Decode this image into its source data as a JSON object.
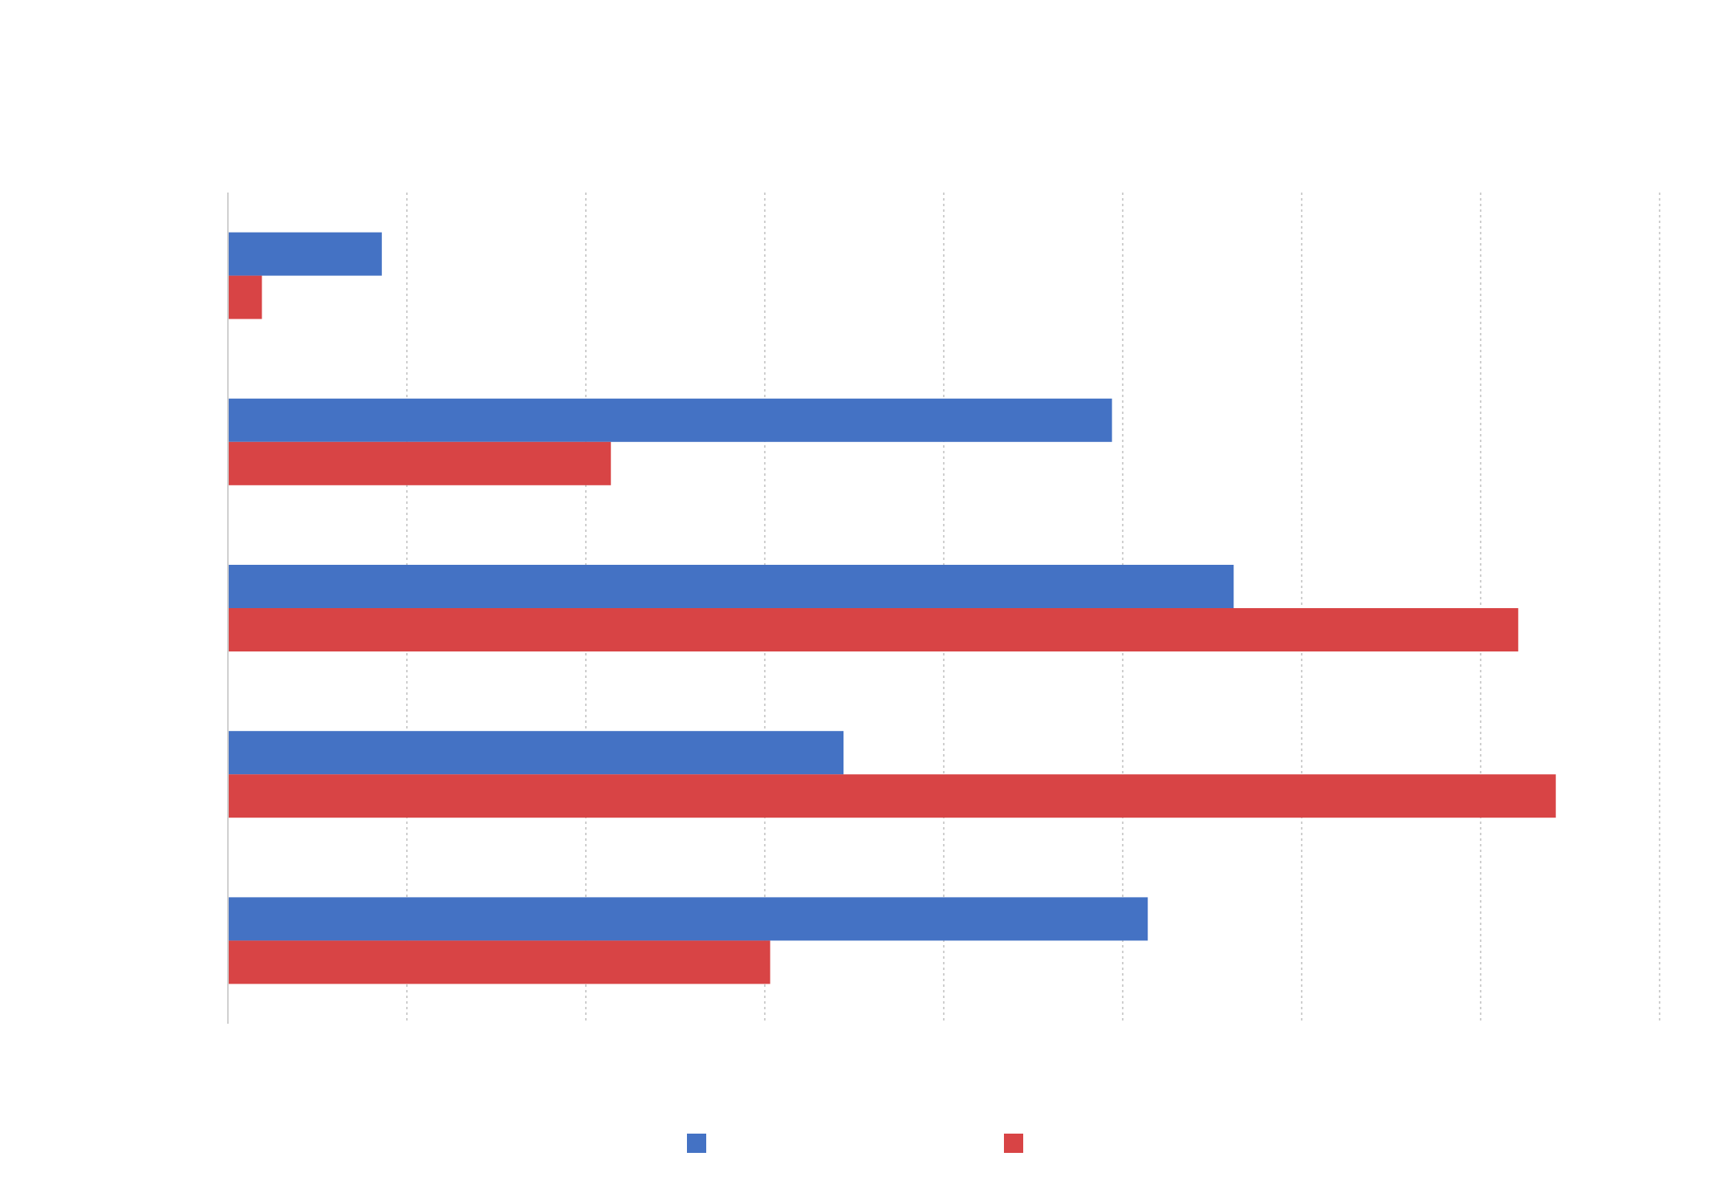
{
  "chart_data": {
    "type": "bar",
    "orientation": "horizontal",
    "title": "",
    "xlabel": "",
    "ylabel": "",
    "categories": [
      "",
      "",
      "",
      "",
      ""
    ],
    "xlim": [
      0,
      8
    ],
    "x_ticks": [
      0,
      1,
      2,
      3,
      4,
      5,
      6,
      7,
      8
    ],
    "grid": true,
    "legend_position": "bottom-center",
    "series": [
      {
        "name": "",
        "color": "#4472c4",
        "values": [
          0.86,
          4.94,
          5.62,
          3.44,
          5.14
        ]
      },
      {
        "name": "",
        "color": "#d84445",
        "values": [
          0.19,
          2.14,
          7.21,
          7.42,
          3.03
        ]
      }
    ]
  }
}
